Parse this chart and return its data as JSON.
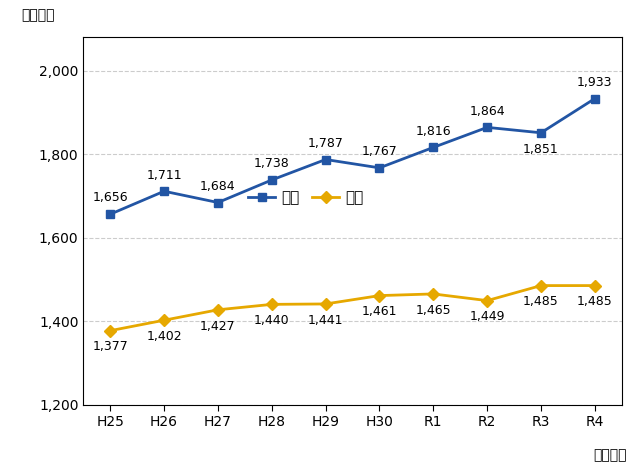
{
  "x_labels": [
    "H25",
    "H26",
    "H27",
    "H28",
    "H29",
    "H30",
    "R1",
    "R2",
    "R3",
    "R4"
  ],
  "tochi_values": [
    1377,
    1402,
    1427,
    1440,
    1441,
    1461,
    1465,
    1449,
    1485,
    1485
  ],
  "kaoku_values": [
    1656,
    1711,
    1684,
    1738,
    1787,
    1767,
    1816,
    1864,
    1851,
    1933
  ],
  "tochi_color": "#E6A800",
  "kaoku_color": "#2255A4",
  "tochi_label": "土地",
  "kaoku_label": "家屋",
  "ylabel": "（億円）",
  "xlabel": "（年度）",
  "ylim": [
    1200,
    2080
  ],
  "yticks": [
    1200,
    1400,
    1600,
    1800,
    2000
  ],
  "background_color": "#ffffff",
  "plot_bg_color": "#ffffff",
  "grid_color": "#cccccc",
  "marker_size": 6,
  "line_width": 2.0,
  "annotation_fontsize": 9,
  "axis_label_fontsize": 10,
  "tick_fontsize": 10,
  "legend_fontsize": 11
}
